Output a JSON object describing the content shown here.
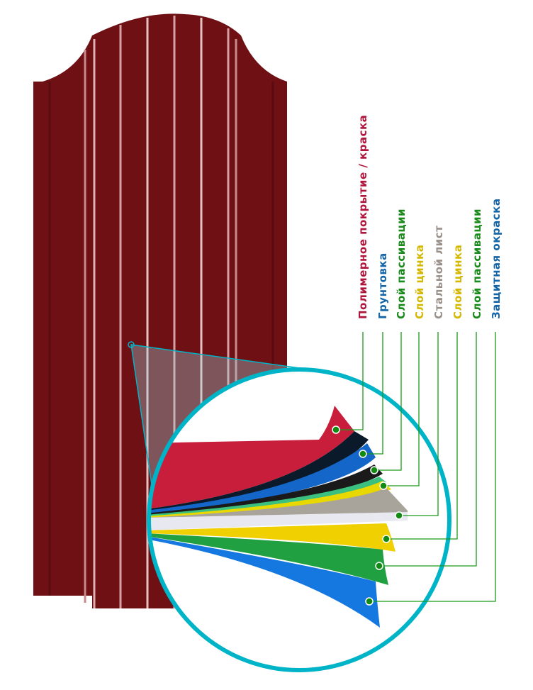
{
  "colors": {
    "fence": "#6e1014",
    "ring": "#00b4c8",
    "leader": "#1a9a1a"
  },
  "layers": [
    {
      "label": "Полимерное покрытие / краска",
      "color": "#b0163c"
    },
    {
      "label": "Грунтовка",
      "color": "#1466a8"
    },
    {
      "label": "Слой пассивации",
      "color": "#1a8a1a"
    },
    {
      "label": "Слой цинка",
      "color": "#d4b800"
    },
    {
      "label": "Стальной лист",
      "color": "#9a908a"
    },
    {
      "label": "Слой цинка",
      "color": "#d4b800"
    },
    {
      "label": "Слой пассивации",
      "color": "#1a8a1a"
    },
    {
      "label": "Защитная окраска",
      "color": "#1466a8"
    }
  ]
}
